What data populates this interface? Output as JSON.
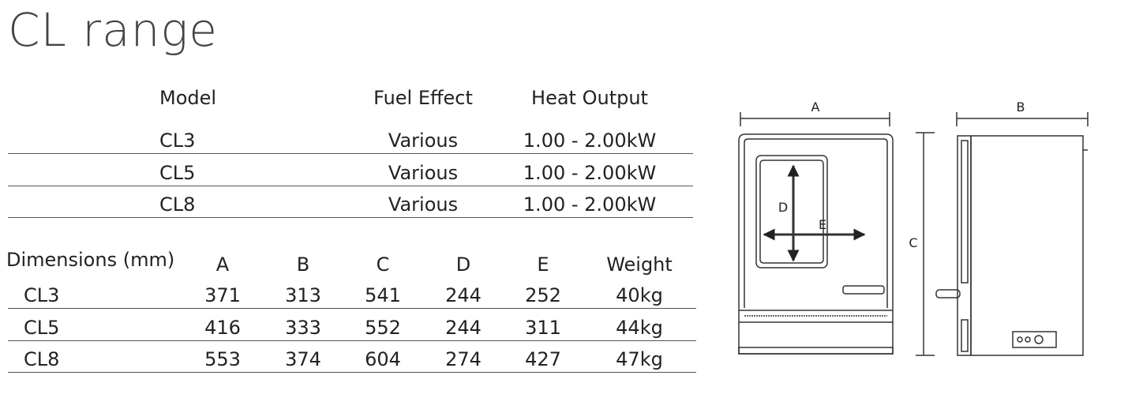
{
  "header": {
    "title": "CL range"
  },
  "specs": {
    "headers": [
      "Model",
      "Fuel Effect",
      "Heat Output"
    ],
    "rows": [
      [
        "CL3",
        "Various",
        "1.00 - 2.00kW"
      ],
      [
        "CL5",
        "Various",
        "1.00 - 2.00kW"
      ],
      [
        "CL8",
        "Various",
        "1.00 - 2.00kW"
      ]
    ]
  },
  "dimensions": {
    "headers": [
      "Dimensions (mm)",
      "A",
      "B",
      "C",
      "D",
      "E",
      "Weight"
    ],
    "rows": [
      [
        "CL3",
        "371",
        "313",
        "541",
        "244",
        "252",
        "40kg"
      ],
      [
        "CL5",
        "416",
        "333",
        "552",
        "244",
        "311",
        "44kg"
      ],
      [
        "CL8",
        "553",
        "374",
        "604",
        "274",
        "427",
        "47kg"
      ]
    ]
  },
  "diagram": {
    "labels": [
      "A",
      "B",
      "C",
      "D",
      "E"
    ]
  }
}
